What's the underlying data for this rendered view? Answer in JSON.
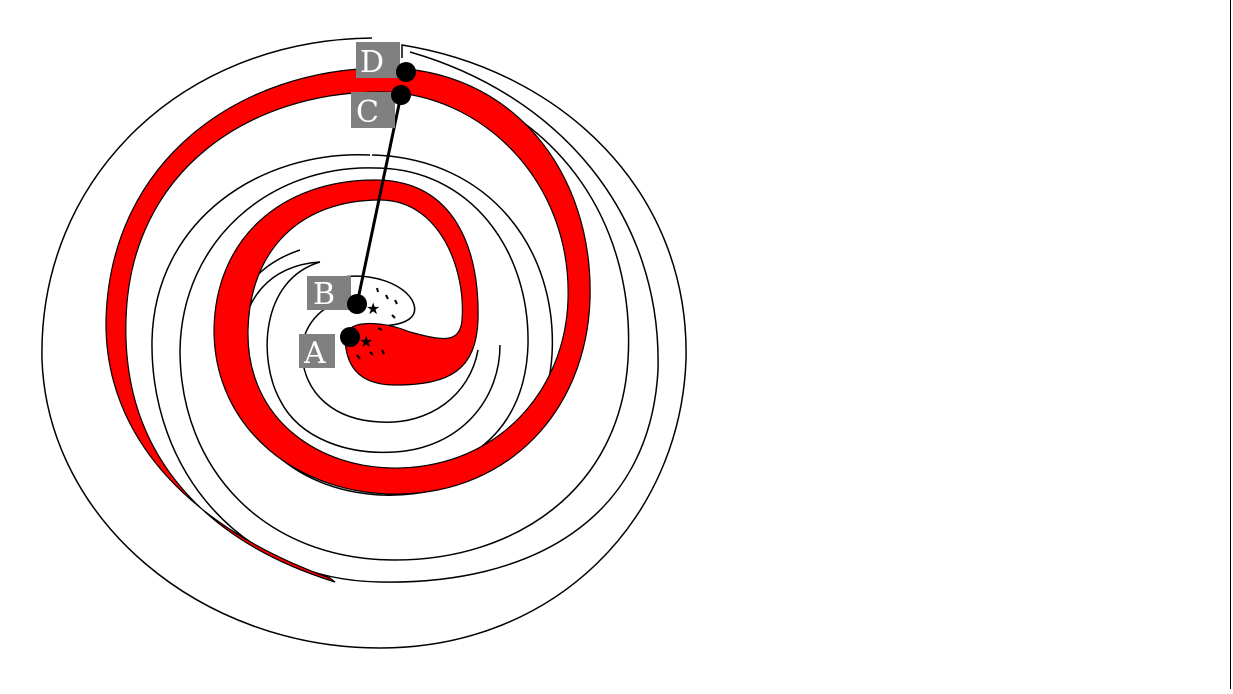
{
  "diagram": {
    "points": [
      {
        "id": "A",
        "label": "A"
      },
      {
        "id": "B",
        "label": "B"
      },
      {
        "id": "C",
        "label": "C"
      },
      {
        "id": "D",
        "label": "D"
      }
    ],
    "colors": {
      "band": "#ff0000",
      "stroke": "#000000",
      "label_bg": "#808080",
      "label_text": "#ffffff",
      "background": "#ffffff"
    }
  }
}
